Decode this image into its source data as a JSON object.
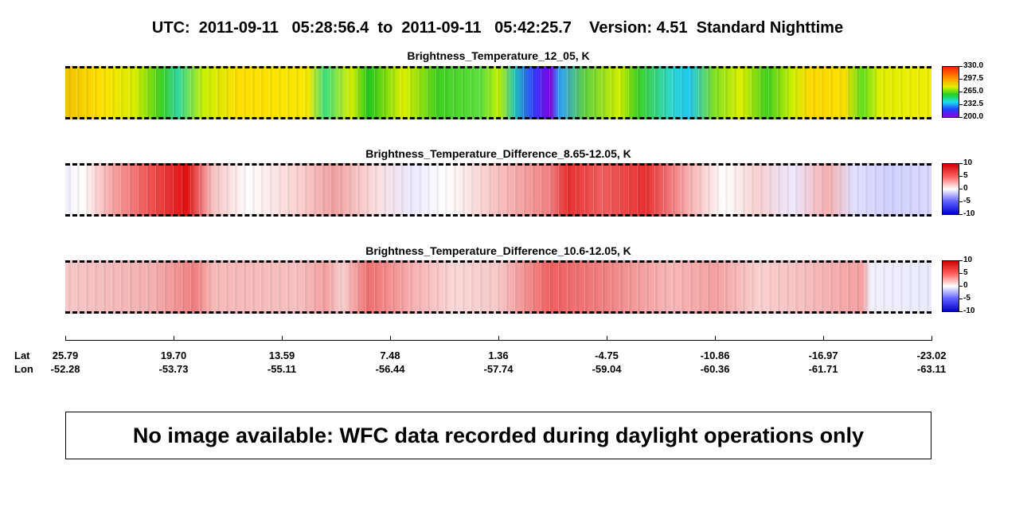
{
  "header": {
    "title": "UTC:  2011-09-11   05:28:56.4  to  2011-09-11   05:42:25.7    Version: 4.51  Standard Nighttime"
  },
  "panels": [
    {
      "title": "Brightness_Temperature_12_05, K",
      "colorbar": {
        "ticks": [
          "330.0",
          "297.5",
          "265.0",
          "232.5",
          "200.0"
        ]
      }
    },
    {
      "title": "Brightness_Temperature_Difference_8.65-12.05, K",
      "colorbar": {
        "ticks": [
          "10",
          "5",
          "0",
          "-5",
          "-10"
        ]
      }
    },
    {
      "title": "Brightness_Temperature_Difference_10.6-12.05, K",
      "colorbar": {
        "ticks": [
          "10",
          "5",
          "0",
          "-5",
          "-10"
        ]
      }
    }
  ],
  "axis": {
    "lat_label": "Lat",
    "lon_label": "Lon",
    "lat": [
      "25.79",
      "19.70",
      "13.59",
      "7.48",
      "1.36",
      "-4.75",
      "-10.86",
      "-16.97",
      "-23.02"
    ],
    "lon": [
      "-52.28",
      "-53.73",
      "-55.11",
      "-56.44",
      "-57.74",
      "-59.04",
      "-60.36",
      "-61.71",
      "-63.11"
    ]
  },
  "message": "No image available: WFC data recorded during daylight operations only"
}
